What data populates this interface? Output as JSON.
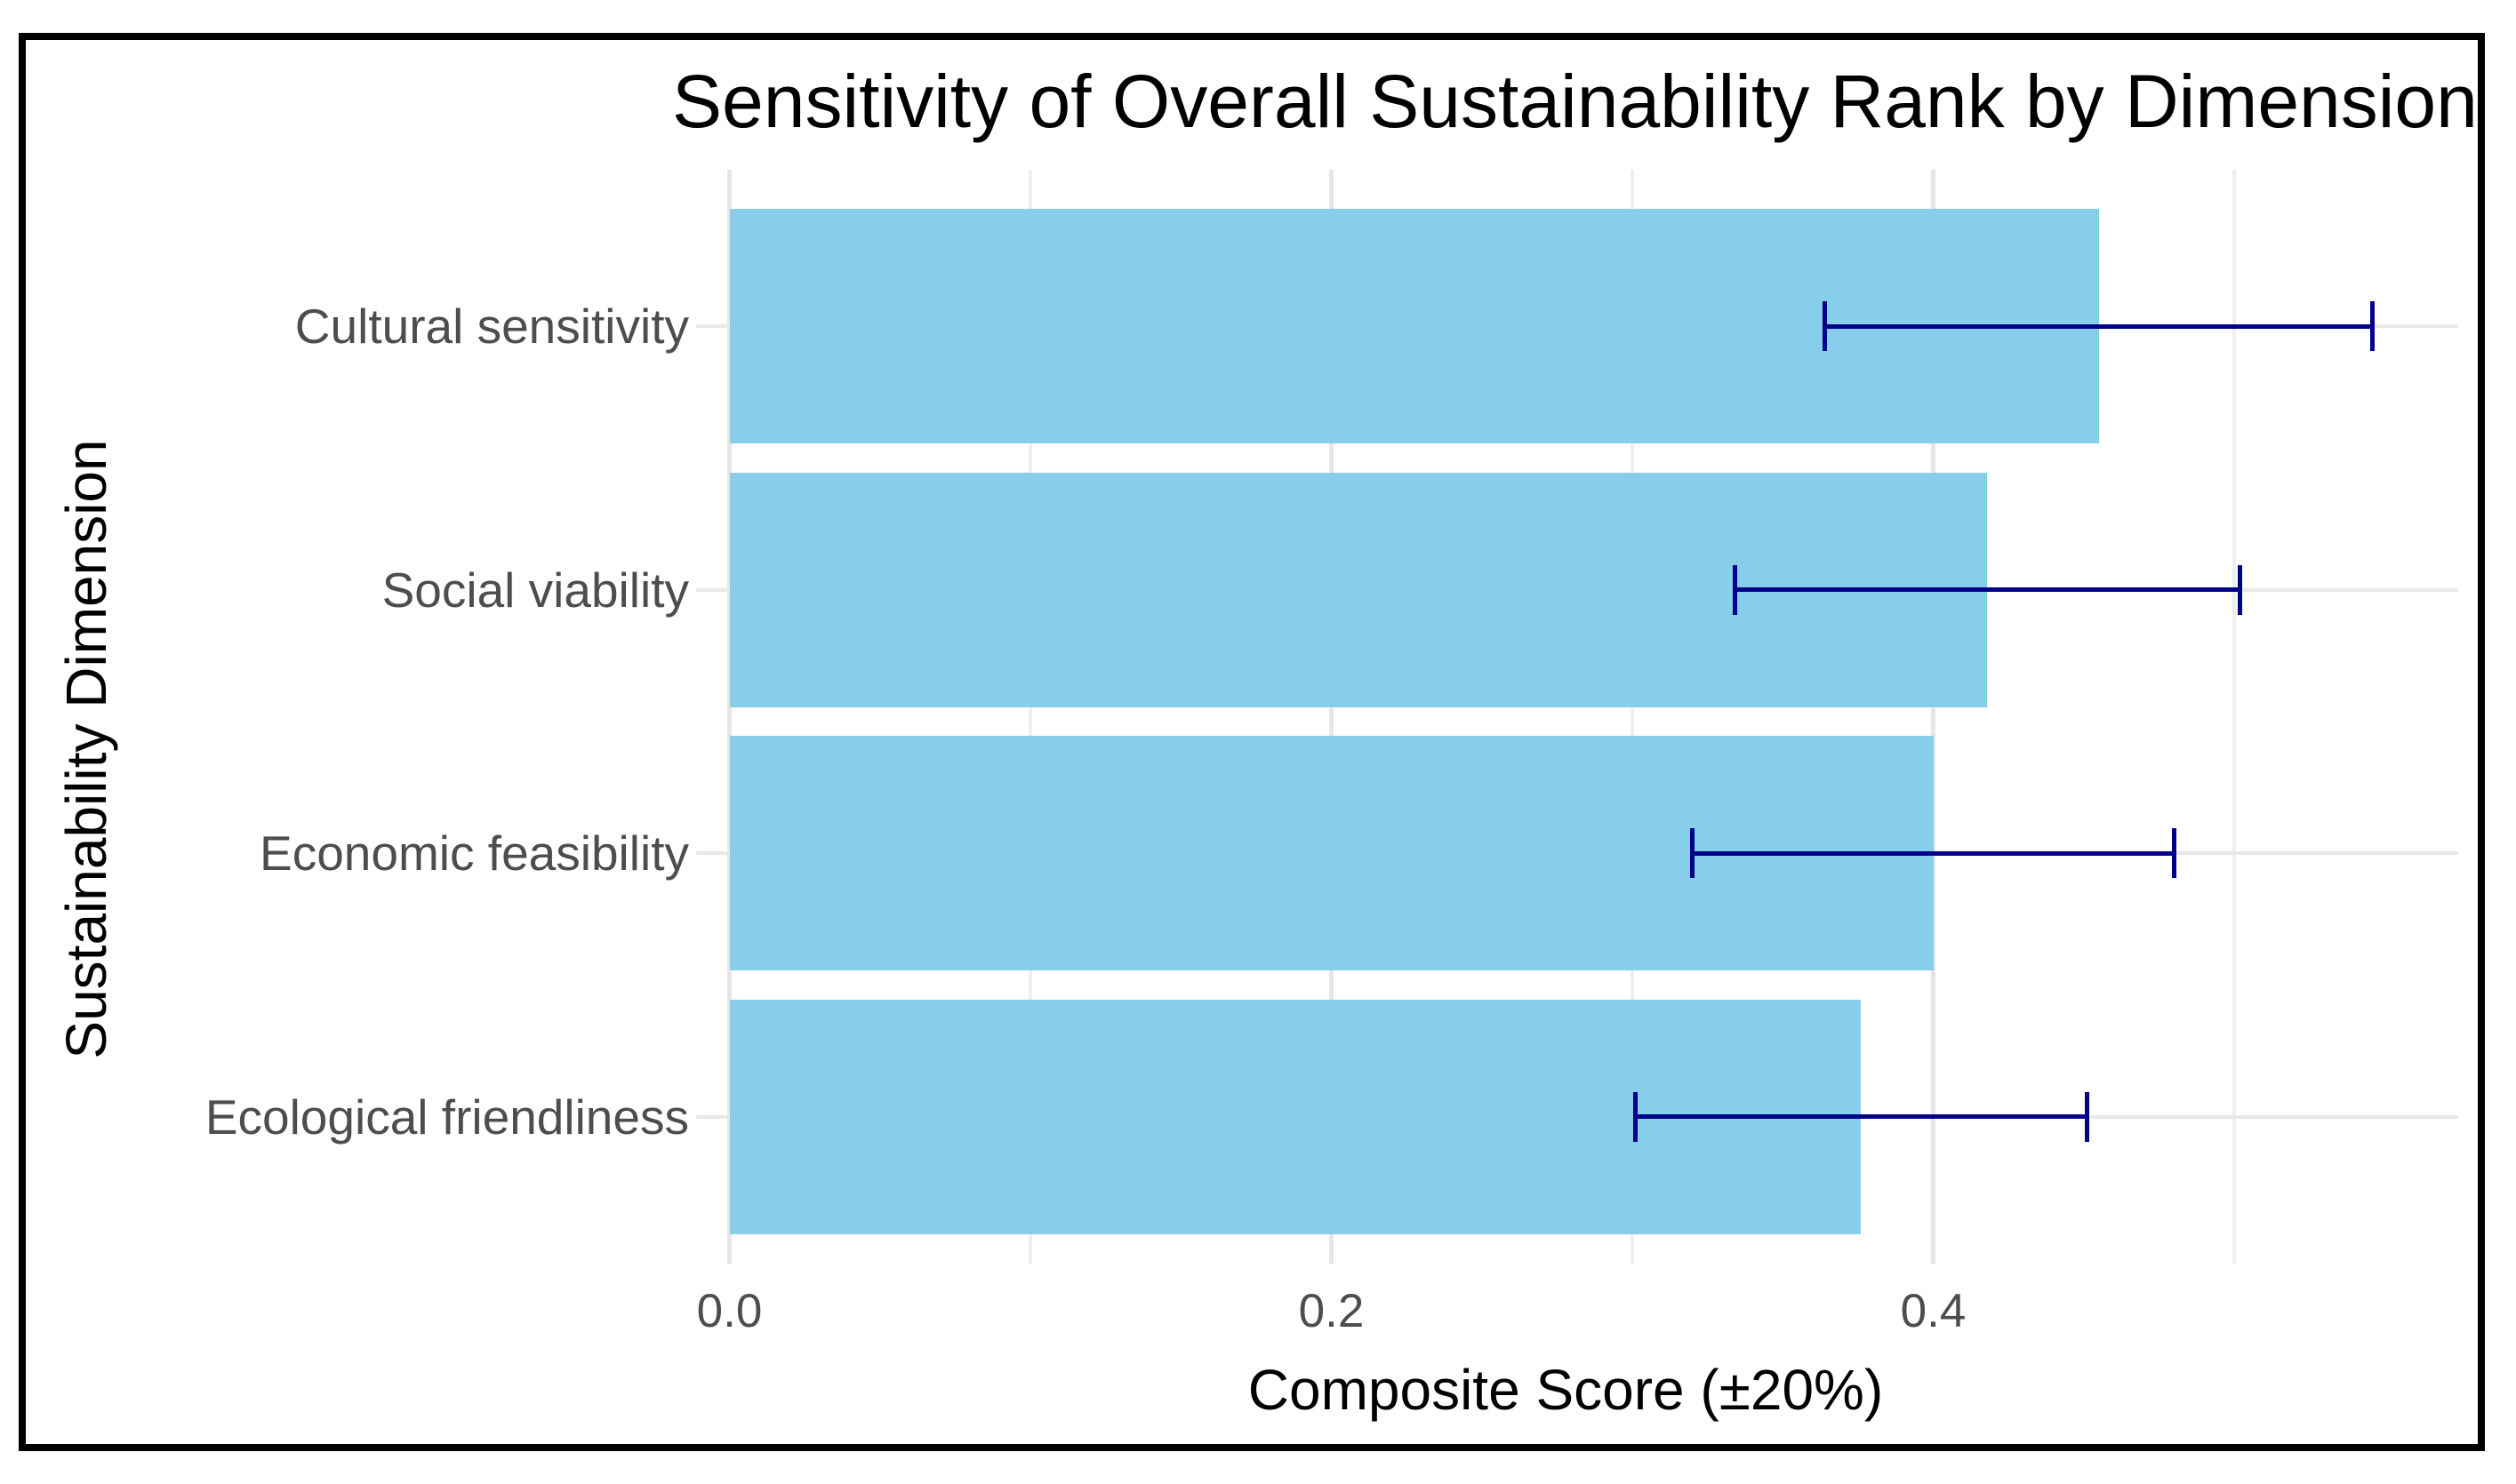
{
  "chart": {
    "title": "Sensitivity of Overall Sustainability Rank by Dimension",
    "xlabel": "Composite Score (±20%)",
    "ylabel": "Sustainability Dimension"
  },
  "chart_data": {
    "type": "bar",
    "orientation": "horizontal",
    "title": "Sensitivity of Overall Sustainability Rank by Dimension",
    "xlabel": "Composite Score (±20%)",
    "ylabel": "Sustainability Dimension",
    "categories": [
      "Cultural sensitivity",
      "Social viability",
      "Economic feasibility",
      "Ecological friendliness"
    ],
    "values": [
      0.455,
      0.418,
      0.4,
      0.376
    ],
    "error_pct": 20,
    "error_low": [
      0.364,
      0.334,
      0.32,
      0.301
    ],
    "error_high": [
      0.546,
      0.502,
      0.48,
      0.451
    ],
    "x_ticks": [
      {
        "label": "0.0",
        "value": 0.0
      },
      {
        "label": "0.2",
        "value": 0.2
      },
      {
        "label": "0.4",
        "value": 0.4
      }
    ],
    "x_minor_ticks": [
      0.1,
      0.3,
      0.5
    ],
    "xlim": [
      0,
      0.575
    ],
    "legend": "none",
    "grid": "on",
    "bar_color": "#87CEEB",
    "error_bar_color": "#00008B",
    "background_color": "#FFFFFF",
    "frame_border_color": "#000000"
  }
}
